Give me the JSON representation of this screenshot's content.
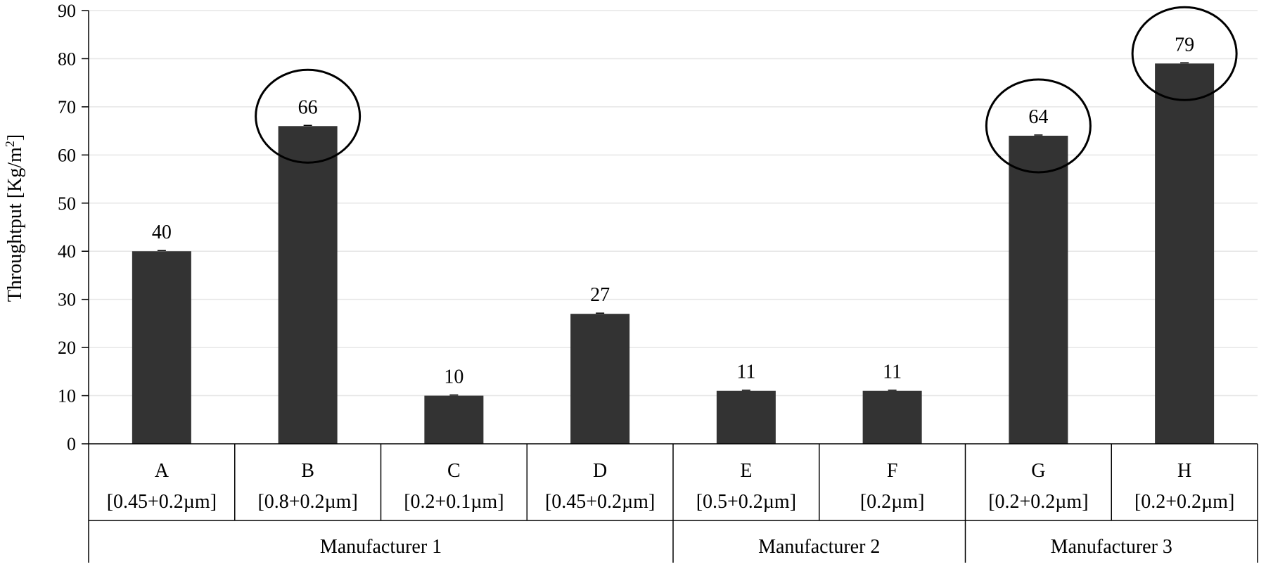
{
  "chart_data": {
    "type": "bar",
    "categories": [
      "A",
      "B",
      "C",
      "D",
      "E",
      "F",
      "G",
      "H"
    ],
    "category_sublabels": [
      "[0.45+0.2µm]",
      "[0.8+0.2µm]",
      "[0.2+0.1µm]",
      "[0.45+0.2µm]",
      "[0.5+0.2µm]",
      "[0.2µm]",
      "[0.2+0.2µm]",
      "[0.2+0.2µm]"
    ],
    "values": [
      40,
      66,
      10,
      27,
      11,
      11,
      64,
      79
    ],
    "data_labels": [
      "40",
      "66",
      "10",
      "27",
      "11",
      "11",
      "64",
      "79"
    ],
    "groups": [
      {
        "name": "Manufacturer 1",
        "span": [
          0,
          3
        ]
      },
      {
        "name": "Manufacturer 2",
        "span": [
          4,
          5
        ]
      },
      {
        "name": "Manufacturer 3",
        "span": [
          6,
          7
        ]
      }
    ],
    "ylabel": "Throughtput [Kg/m2]",
    "ylabel_main": "Throughtput [Kg/m",
    "ylabel_sup": "2",
    "ylabel_end": "]",
    "ylim": [
      0,
      90
    ],
    "yticks": [
      0,
      10,
      20,
      30,
      40,
      50,
      60,
      70,
      80,
      90
    ],
    "grid": true,
    "highlighted": [
      "B",
      "G",
      "H"
    ],
    "colors": {
      "bar": "#333333",
      "grid": "#e6e6e6",
      "axis": "#000000"
    }
  }
}
